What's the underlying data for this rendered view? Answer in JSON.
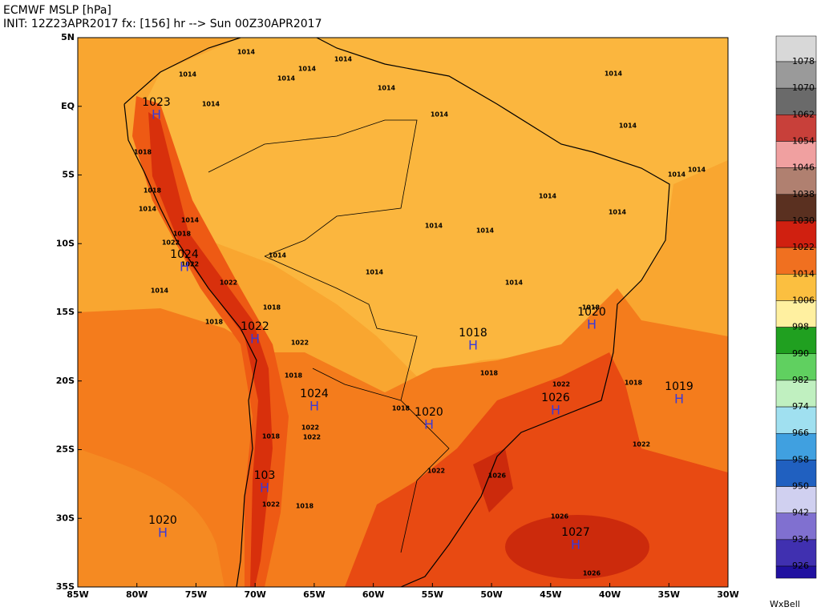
{
  "header": {
    "title": "ECMWF MSLP [hPa]",
    "subtitle": "INIT: 12Z23APR2017 fx: [156] hr --> Sun 00Z30APR2017"
  },
  "axes": {
    "lat_labels": [
      "5N",
      "EQ",
      "5S",
      "10S",
      "15S",
      "20S",
      "25S",
      "30S",
      "35S"
    ],
    "lon_labels": [
      "85W",
      "80W",
      "75W",
      "70W",
      "65W",
      "60W",
      "55W",
      "50W",
      "45W",
      "40W",
      "35W",
      "30W"
    ]
  },
  "highs": [
    {
      "marker": "H",
      "value": "1023"
    },
    {
      "marker": "H",
      "value": "1024"
    },
    {
      "marker": "H",
      "value": "1022"
    },
    {
      "marker": "H",
      "value": "1018"
    },
    {
      "marker": "H",
      "value": "1020"
    },
    {
      "marker": "H",
      "value": "1019"
    },
    {
      "marker": "H",
      "value": "1024"
    },
    {
      "marker": "H",
      "value": "1026"
    },
    {
      "marker": "H",
      "value": "1020"
    },
    {
      "marker": "H",
      "value": "103"
    },
    {
      "marker": "H",
      "value": "1020"
    },
    {
      "marker": "H",
      "value": "1027"
    }
  ],
  "contour_labels": [
    "1014",
    "1014",
    "1014",
    "1014",
    "1014",
    "1014",
    "1014",
    "1014",
    "1014",
    "1014",
    "1014",
    "1014",
    "1014",
    "1014",
    "1014",
    "1014",
    "1014",
    "1014",
    "1014",
    "1014",
    "1014",
    "1014",
    "1018",
    "1018",
    "1018",
    "1018",
    "1018",
    "1018",
    "1018",
    "1018",
    "1018",
    "1018",
    "1018",
    "1018",
    "1022",
    "1022",
    "1022",
    "1022",
    "1022",
    "1022",
    "1022",
    "1022",
    "1022",
    "1022",
    "1026",
    "1026",
    "1026"
  ],
  "colorbar": {
    "labels": [
      "1078",
      "1070",
      "1062",
      "1054",
      "1046",
      "1038",
      "1030",
      "1022",
      "1014",
      "1006",
      "998",
      "990",
      "982",
      "974",
      "966",
      "958",
      "950",
      "942",
      "934",
      "926"
    ],
    "colors": [
      "#d8d8d8",
      "#9a9a9a",
      "#6a6a6a",
      "#c8403a",
      "#f0a0a0",
      "#b08070",
      "#5a3020",
      "#d02010",
      "#f07020",
      "#fbbf40",
      "#fff0a0",
      "#20a020",
      "#60d060",
      "#c0f0c0",
      "#a0e0f0",
      "#40a0e0",
      "#2060c0",
      "#d0d0f0",
      "#8070d0",
      "#4030b0",
      "#2010a0"
    ]
  },
  "credit": "WxBell"
}
